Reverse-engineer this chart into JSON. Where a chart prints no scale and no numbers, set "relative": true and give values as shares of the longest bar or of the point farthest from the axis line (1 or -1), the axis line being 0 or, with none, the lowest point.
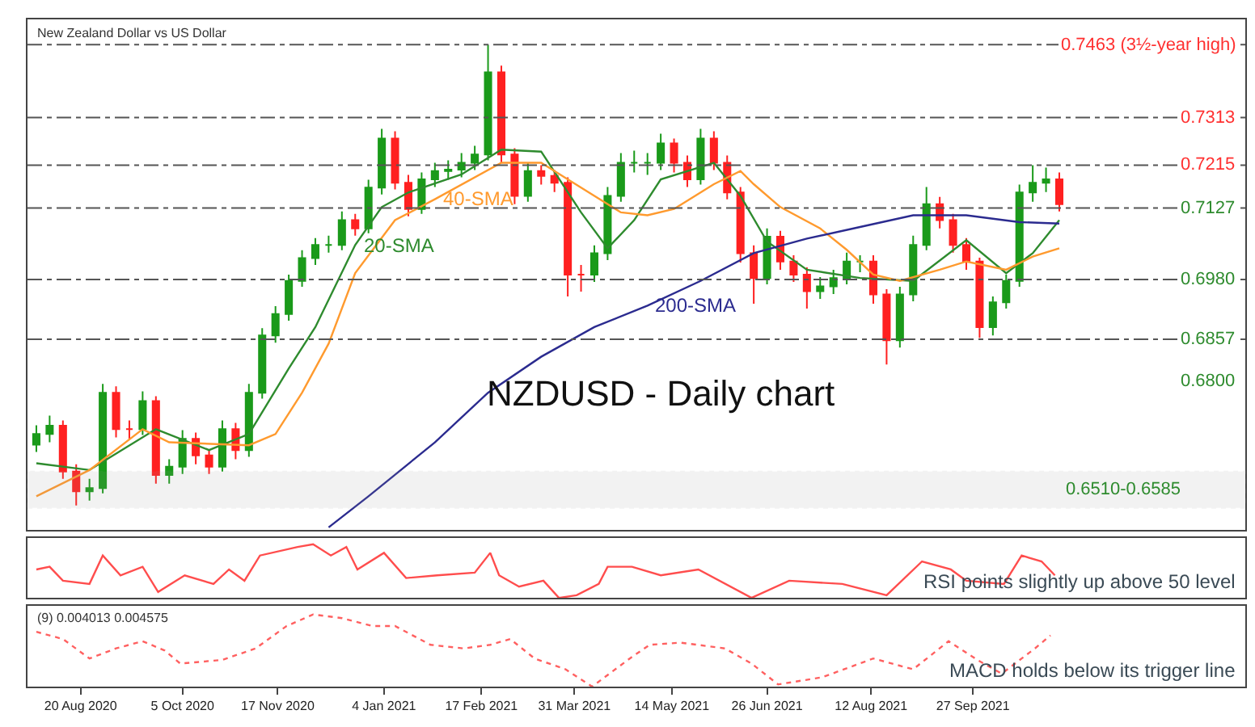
{
  "chart_data": [
    {
      "type": "candlestick",
      "title": "NZDUSD - Daily chart",
      "subtitle": "New Zealand Dollar vs US Dollar",
      "x": [
        "2020-07-31",
        "2020-08-06",
        "2020-08-12",
        "2020-08-18",
        "2020-08-24",
        "2020-08-30",
        "2020-09-05",
        "2020-09-11",
        "2020-09-17",
        "2020-09-23",
        "2020-09-29",
        "2020-10-05",
        "2020-10-11",
        "2020-10-17",
        "2020-10-23",
        "2020-10-29",
        "2020-11-04",
        "2020-11-10",
        "2020-11-16",
        "2020-11-22",
        "2020-11-28",
        "2020-12-04",
        "2020-12-10",
        "2020-12-16",
        "2020-12-22",
        "2020-12-28",
        "2021-01-03",
        "2021-01-09",
        "2021-01-15",
        "2021-01-21",
        "2021-01-27",
        "2021-02-02",
        "2021-02-08",
        "2021-02-14",
        "2021-02-20",
        "2021-02-26",
        "2021-03-04",
        "2021-03-10",
        "2021-03-16",
        "2021-03-22",
        "2021-03-28",
        "2021-04-03",
        "2021-04-09",
        "2021-04-15",
        "2021-04-21",
        "2021-04-27",
        "2021-05-03",
        "2021-05-09",
        "2021-05-15",
        "2021-05-21",
        "2021-05-27",
        "2021-06-02",
        "2021-06-08",
        "2021-06-14",
        "2021-06-20",
        "2021-06-26",
        "2021-07-02",
        "2021-07-08",
        "2021-07-14",
        "2021-07-20",
        "2021-07-26",
        "2021-08-01",
        "2021-08-07",
        "2021-08-13",
        "2021-08-19",
        "2021-08-25",
        "2021-08-31",
        "2021-09-06",
        "2021-09-12",
        "2021-09-18",
        "2021-09-24",
        "2021-09-30",
        "2021-10-06",
        "2021-10-12",
        "2021-10-18",
        "2021-10-24",
        "2021-10-30",
        "2021-11-05"
      ],
      "ohlc": [
        [
          0.664,
          0.668,
          0.6625,
          0.6662
        ],
        [
          0.6662,
          0.67,
          0.6645,
          0.6679
        ],
        [
          0.6679,
          0.669,
          0.657,
          0.6585
        ],
        [
          0.6585,
          0.66,
          0.6515,
          0.6544
        ],
        [
          0.6544,
          0.657,
          0.6525,
          0.6551
        ],
        [
          0.6551,
          0.6765,
          0.654,
          0.6747
        ],
        [
          0.6747,
          0.676,
          0.6655,
          0.6672
        ],
        [
          0.6672,
          0.669,
          0.665,
          0.6672
        ],
        [
          0.6672,
          0.675,
          0.666,
          0.673
        ],
        [
          0.673,
          0.674,
          0.656,
          0.6578
        ],
        [
          0.6578,
          0.661,
          0.656,
          0.6595
        ],
        [
          0.6595,
          0.667,
          0.658,
          0.6652
        ],
        [
          0.6652,
          0.6665,
          0.66,
          0.6618
        ],
        [
          0.6618,
          0.663,
          0.658,
          0.6595
        ],
        [
          0.6595,
          0.669,
          0.6585,
          0.6672
        ],
        [
          0.6672,
          0.6685,
          0.661,
          0.6629
        ],
        [
          0.6629,
          0.6765,
          0.6615,
          0.6747
        ],
        [
          0.6747,
          0.688,
          0.6735,
          0.6865
        ],
        [
          0.6865,
          0.6925,
          0.685,
          0.6909
        ],
        [
          0.6909,
          0.699,
          0.6895,
          0.6977
        ],
        [
          0.6977,
          0.704,
          0.6965,
          0.7024
        ],
        [
          0.7024,
          0.7065,
          0.701,
          0.7051
        ],
        [
          0.7051,
          0.707,
          0.7035,
          0.7051
        ],
        [
          0.7051,
          0.712,
          0.704,
          0.7102
        ],
        [
          0.7102,
          0.7115,
          0.707,
          0.7085
        ],
        [
          0.7085,
          0.7185,
          0.7075,
          0.7169
        ],
        [
          0.7169,
          0.729,
          0.7155,
          0.727
        ],
        [
          0.727,
          0.7285,
          0.7165,
          0.7179
        ],
        [
          0.7179,
          0.7195,
          0.711,
          0.7125
        ],
        [
          0.7125,
          0.72,
          0.7115,
          0.7186
        ],
        [
          0.7186,
          0.722,
          0.717,
          0.7203
        ],
        [
          0.7203,
          0.7225,
          0.7185,
          0.7206
        ],
        [
          0.7206,
          0.724,
          0.719,
          0.722
        ],
        [
          0.722,
          0.7255,
          0.7205,
          0.7237
        ],
        [
          0.7237,
          0.7463,
          0.7225,
          0.7406
        ],
        [
          0.7406,
          0.742,
          0.722,
          0.7237
        ],
        [
          0.7237,
          0.725,
          0.7135,
          0.7152
        ],
        [
          0.7152,
          0.722,
          0.714,
          0.7203
        ],
        [
          0.7203,
          0.7215,
          0.7175,
          0.7193
        ],
        [
          0.7193,
          0.7205,
          0.716,
          0.7179
        ],
        [
          0.7179,
          0.719,
          0.6945,
          0.699
        ],
        [
          0.699,
          0.701,
          0.6955,
          0.699
        ],
        [
          0.699,
          0.705,
          0.6975,
          0.7034
        ],
        [
          0.7034,
          0.717,
          0.702,
          0.7152
        ],
        [
          0.7152,
          0.724,
          0.714,
          0.722
        ],
        [
          0.722,
          0.7245,
          0.72,
          0.722
        ],
        [
          0.722,
          0.724,
          0.7195,
          0.722
        ],
        [
          0.722,
          0.728,
          0.7205,
          0.726
        ],
        [
          0.726,
          0.727,
          0.72,
          0.722
        ],
        [
          0.722,
          0.7235,
          0.717,
          0.7186
        ],
        [
          0.7186,
          0.729,
          0.7175,
          0.727
        ],
        [
          0.727,
          0.7285,
          0.7205,
          0.722
        ],
        [
          0.722,
          0.7235,
          0.7145,
          0.7159
        ],
        [
          0.7159,
          0.717,
          0.7015,
          0.7034
        ],
        [
          0.7034,
          0.705,
          0.693,
          0.6983
        ],
        [
          0.6983,
          0.7085,
          0.697,
          0.7068
        ],
        [
          0.7068,
          0.708,
          0.7,
          0.7017
        ],
        [
          0.7017,
          0.703,
          0.6975,
          0.699
        ],
        [
          0.699,
          0.7005,
          0.692,
          0.6956
        ],
        [
          0.6956,
          0.6985,
          0.694,
          0.6966
        ],
        [
          0.6966,
          0.7,
          0.695,
          0.6983
        ],
        [
          0.6983,
          0.7035,
          0.697,
          0.7017
        ],
        [
          0.7017,
          0.703,
          0.6995,
          0.7017
        ],
        [
          0.7017,
          0.703,
          0.693,
          0.6949
        ],
        [
          0.6949,
          0.696,
          0.6805,
          0.6855
        ],
        [
          0.6855,
          0.6965,
          0.684,
          0.6949
        ],
        [
          0.6949,
          0.707,
          0.6935,
          0.7051
        ],
        [
          0.7051,
          0.717,
          0.704,
          0.7135
        ],
        [
          0.7135,
          0.715,
          0.7085,
          0.7102
        ],
        [
          0.7102,
          0.7115,
          0.7035,
          0.7051
        ],
        [
          0.7051,
          0.7065,
          0.7,
          0.7017
        ],
        [
          0.7017,
          0.7025,
          0.686,
          0.6882
        ],
        [
          0.6882,
          0.6945,
          0.6865,
          0.6933
        ],
        [
          0.6933,
          0.699,
          0.692,
          0.6977
        ],
        [
          0.6977,
          0.7175,
          0.6965,
          0.7159
        ],
        [
          0.7159,
          0.7215,
          0.714,
          0.7179
        ],
        [
          0.7179,
          0.721,
          0.716,
          0.7186
        ],
        [
          0.7186,
          0.72,
          0.712,
          0.7135
        ]
      ],
      "series": [
        {
          "type": "line",
          "name": "20-SMA",
          "color": "#2e8b2e",
          "x": [
            "2020-07-31",
            "2020-08-24",
            "2020-09-23",
            "2020-10-17",
            "2020-11-04",
            "2020-11-22",
            "2020-12-04",
            "2020-12-22",
            "2021-01-03",
            "2021-01-15",
            "2021-02-08",
            "2021-02-26",
            "2021-03-16",
            "2021-04-03",
            "2021-04-15",
            "2021-04-27",
            "2021-05-09",
            "2021-06-02",
            "2021-06-14",
            "2021-06-26",
            "2021-07-14",
            "2021-08-07",
            "2021-08-31",
            "2021-09-24",
            "2021-10-12",
            "2021-10-24",
            "2021-11-05"
          ],
          "values": [
            0.6602,
            0.6588,
            0.6672,
            0.6629,
            0.6662,
            0.6797,
            0.6882,
            0.7051,
            0.7129,
            0.7159,
            0.7196,
            0.7247,
            0.7243,
            0.7118,
            0.7044,
            0.7102,
            0.7186,
            0.722,
            0.7152,
            0.7058,
            0.7,
            0.6983,
            0.6977,
            0.7061,
            0.6993,
            0.7034,
            0.7102
          ]
        },
        {
          "type": "line",
          "name": "40-SMA",
          "color": "#ff9a2e",
          "x": [
            "2020-07-31",
            "2020-08-24",
            "2020-09-17",
            "2020-09-29",
            "2020-11-04",
            "2020-11-16",
            "2020-11-28",
            "2020-12-10",
            "2020-12-22",
            "2021-01-09",
            "2021-01-27",
            "2021-02-26",
            "2021-03-16",
            "2021-03-28",
            "2021-04-21",
            "2021-05-03",
            "2021-05-15",
            "2021-06-02",
            "2021-06-14",
            "2021-06-20",
            "2021-07-02",
            "2021-07-20",
            "2021-08-01",
            "2021-08-13",
            "2021-08-25",
            "2021-09-12",
            "2021-09-24",
            "2021-10-12",
            "2021-10-24",
            "2021-11-05"
          ],
          "values": [
            0.6534,
            0.6588,
            0.6672,
            0.6645,
            0.6639,
            0.6662,
            0.6747,
            0.6848,
            0.6993,
            0.7102,
            0.7145,
            0.722,
            0.722,
            0.7186,
            0.7118,
            0.7112,
            0.7125,
            0.7176,
            0.7203,
            0.7176,
            0.7129,
            0.7085,
            0.7041,
            0.699,
            0.6977,
            0.7,
            0.7017,
            0.7,
            0.7027,
            0.7044
          ]
        },
        {
          "type": "line",
          "name": "200-SMA",
          "color": "#2b2b8f",
          "x": [
            "2020-12-10",
            "2020-12-28",
            "2021-01-27",
            "2021-02-20",
            "2021-03-16",
            "2021-04-09",
            "2021-05-03",
            "2021-05-27",
            "2021-06-20",
            "2021-07-14",
            "2021-08-07",
            "2021-08-31",
            "2021-09-24",
            "2021-10-18",
            "2021-11-05"
          ],
          "values": [
            0.647,
            0.6534,
            0.6645,
            0.6747,
            0.6821,
            0.6882,
            0.6926,
            0.6977,
            0.7034,
            0.7064,
            0.7088,
            0.7112,
            0.7112,
            0.7098,
            0.7095
          ]
        }
      ],
      "ref_lines": [
        {
          "axis": "y",
          "value": 0.7463,
          "label": "0.7463 (3½-year high)"
        },
        {
          "axis": "y",
          "value": 0.7313,
          "label": "0.7313"
        },
        {
          "axis": "y",
          "value": 0.7215,
          "label": "0.7215"
        },
        {
          "axis": "y",
          "value": 0.7127,
          "label": "0.7127"
        },
        {
          "axis": "y",
          "value": 0.698,
          "label": "0.6980"
        },
        {
          "axis": "y",
          "value": 0.6857,
          "label": "0.6857"
        }
      ],
      "bands": [
        {
          "axis": "y",
          "from": 0.651,
          "to": 0.6585,
          "label": "0.6510-0.6585"
        }
      ],
      "annotations": [
        "0.6800"
      ],
      "xlim": [
        "2020-07-27",
        "2022-01-28"
      ],
      "ylim": [
        0.6465,
        0.7515
      ],
      "tick_labels": false
    },
    {
      "type": "line",
      "relative": true,
      "x": [
        "2020-07-31",
        "2020-08-06",
        "2020-08-12",
        "2020-08-24",
        "2020-08-30",
        "2020-09-07",
        "2020-09-17",
        "2020-09-24",
        "2020-10-06",
        "2020-10-19",
        "2020-10-26",
        "2020-11-02",
        "2020-11-09",
        "2020-11-26",
        "2020-12-03",
        "2020-12-11",
        "2020-12-18",
        "2020-12-23",
        "2021-01-04",
        "2021-01-14",
        "2021-01-28",
        "2021-02-14",
        "2021-02-21",
        "2021-02-25",
        "2021-03-06",
        "2021-03-17",
        "2021-03-24",
        "2021-04-01",
        "2021-04-11",
        "2021-04-15",
        "2021-04-26",
        "2021-05-09",
        "2021-05-26",
        "2021-06-19",
        "2021-07-06",
        "2021-07-30",
        "2021-08-19",
        "2021-09-04",
        "2021-09-17",
        "2021-09-24",
        "2021-10-11",
        "2021-10-19",
        "2021-10-28",
        "2021-11-03"
      ],
      "series": [
        {
          "color": "#ff4d4d",
          "values": [
            0.53,
            0.58,
            0.32,
            0.26,
            0.79,
            0.42,
            0.58,
            0.11,
            0.42,
            0.26,
            0.53,
            0.32,
            0.79,
            0.95,
            1,
            0.79,
            0.95,
            0.53,
            0.84,
            0.37,
            0.42,
            0.47,
            0.84,
            0.42,
            0.21,
            0.32,
            0,
            0.05,
            0.26,
            0.58,
            0.58,
            0.42,
            0.53,
            0,
            0.32,
            0.26,
            0.05,
            0.68,
            0.53,
            0.32,
            0.26,
            0.79,
            0.68,
            0.42
          ]
        }
      ],
      "annotations": [
        "RSI points slightly up above 50 level"
      ],
      "xlim": [
        "2020-07-27",
        "2022-01-28"
      ],
      "tick_labels": false
    },
    {
      "type": "line",
      "relative": true,
      "line_style": "dotted",
      "x": [
        "2020-07-31",
        "2020-08-12",
        "2020-08-24",
        "2020-09-05",
        "2020-09-17",
        "2020-09-27",
        "2020-10-04",
        "2020-10-23",
        "2020-11-07",
        "2020-11-21",
        "2020-12-03",
        "2020-12-16",
        "2020-12-30",
        "2021-01-09",
        "2021-01-25",
        "2021-02-09",
        "2021-02-21",
        "2021-03-02",
        "2021-03-13",
        "2021-03-27",
        "2021-04-08",
        "2021-04-25",
        "2021-05-04",
        "2021-05-18",
        "2021-06-07",
        "2021-06-19",
        "2021-07-01",
        "2021-07-21",
        "2021-08-13",
        "2021-08-31",
        "2021-09-16",
        "2021-09-29",
        "2021-10-10",
        "2021-10-25",
        "2021-11-01"
      ],
      "series": [
        {
          "color": "#ff6060",
          "values": [
            0.76,
            0.66,
            0.39,
            0.53,
            0.63,
            0.5,
            0.32,
            0.37,
            0.53,
            0.84,
            1,
            0.95,
            0.84,
            0.84,
            0.58,
            0.53,
            0.58,
            0.66,
            0.39,
            0.24,
            0,
            0.39,
            0.58,
            0.61,
            0.53,
            0.32,
            0.03,
            0.13,
            0.39,
            0.24,
            0.63,
            0.37,
            0.18,
            0.53,
            0.71
          ]
        }
      ],
      "annotations": [
        "(9) 0.004013 0.004575",
        "MACD holds below its trigger line"
      ],
      "xlim": [
        "2020-07-27",
        "2022-01-28"
      ],
      "xticks": [
        {
          "value": "2020-08-20",
          "label": "20 Aug 2020"
        },
        {
          "value": "2020-10-05",
          "label": "5 Oct 2020"
        },
        {
          "value": "2020-11-17",
          "label": "17 Nov 2020"
        },
        {
          "value": "2021-01-04",
          "label": "4 Jan 2021"
        },
        {
          "value": "2021-02-17",
          "label": "17 Feb 2021"
        },
        {
          "value": "2021-03-31",
          "label": "31 Mar 2021"
        },
        {
          "value": "2021-05-14",
          "label": "14 May 2021"
        },
        {
          "value": "2021-06-26",
          "label": "26 Jun 2021"
        },
        {
          "value": "2021-08-12",
          "label": "12 Aug 2021"
        },
        {
          "value": "2021-09-27",
          "label": "27 Sep 2021"
        }
      ],
      "tick_labels": "x"
    }
  ]
}
